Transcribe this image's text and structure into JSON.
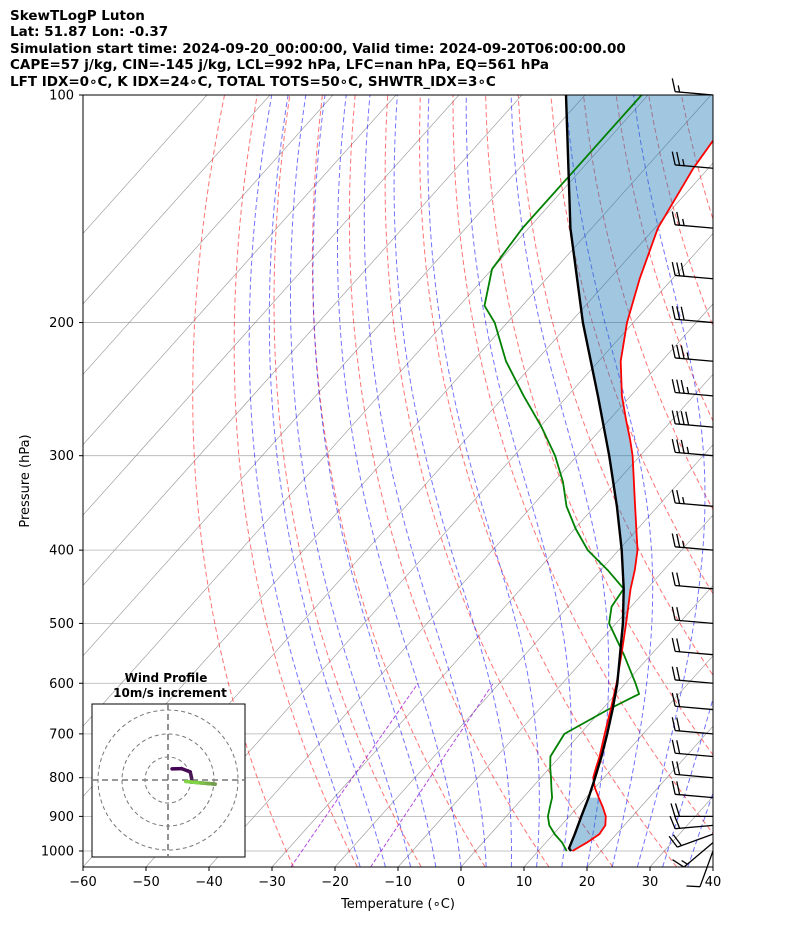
{
  "header": {
    "line1": "SkewTLogP Luton",
    "line2": "Lat: 51.87   Lon: -0.37",
    "line3": "Simulation start time: 2024-09-20_00:00:00, Valid time: 2024-09-20T06:00:00.00",
    "line4": "CAPE=57 j/kg, CIN=-145 j/kg, LCL=992 hPa, LFC=nan hPa, EQ=561 hPa",
    "line5": "LFT IDX=0∘C, K IDX=24∘C, TOTAL TOTS=50∘C, SHWTR_IDX=3∘C"
  },
  "chart_data": {
    "type": "skewt",
    "xlabel": "Temperature (∘C)",
    "ylabel": "Pressure (hPa)",
    "xlim": [
      -60,
      40
    ],
    "ylim": [
      1050,
      100
    ],
    "y_scale": "log",
    "grid": true,
    "x_ticks": [
      -60,
      -50,
      -40,
      -30,
      -20,
      -10,
      0,
      10,
      20,
      30,
      40
    ],
    "x_tick_labels": [
      "−60",
      "−50",
      "−40",
      "−30",
      "−20",
      "−10",
      "0",
      "10",
      "20",
      "30",
      "40"
    ],
    "y_ticks": [
      1000,
      900,
      800,
      700,
      600,
      500,
      400,
      300,
      200,
      100
    ],
    "y_tick_labels": [
      "1000",
      "900",
      "800",
      "700",
      "600",
      "500",
      "400",
      "300",
      "200",
      "100"
    ],
    "colors": {
      "temperature": "#ff0000",
      "dewpoint": "#008000",
      "parcel": "#000000",
      "cape_fill": "#1f77b4",
      "dry_adiabat": "#ff0000",
      "moist_adiabat": "#0000ff",
      "mixing_ratio": "#9400d3",
      "isotherm": "#808080"
    },
    "temperature": {
      "pressure": [
        1000,
        975,
        950,
        925,
        900,
        875,
        850,
        825,
        800,
        775,
        750,
        700,
        650,
        600,
        550,
        500,
        450,
        425,
        400,
        350,
        300,
        285,
        270,
        250,
        225,
        200,
        175,
        150,
        125,
        110,
        100
      ],
      "values": [
        15.4,
        16.5,
        17.3,
        17.0,
        15.8,
        14.0,
        12.0,
        10.0,
        8.3,
        7.3,
        6.3,
        3.9,
        1.4,
        -1.4,
        -4.7,
        -8.4,
        -12.6,
        -14.6,
        -17.0,
        -23.6,
        -31.2,
        -34.0,
        -37.1,
        -41.4,
        -46.5,
        -51.0,
        -55.2,
        -59.5,
        -62.4,
        -63.6,
        -64.4
      ]
    },
    "dewpoint": {
      "pressure": [
        1000,
        975,
        950,
        925,
        900,
        875,
        850,
        825,
        800,
        775,
        750,
        700,
        650,
        620,
        600,
        550,
        500,
        475,
        450,
        425,
        400,
        375,
        350,
        325,
        300,
        275,
        250,
        225,
        200,
        190,
        170,
        150,
        125,
        110,
        100
      ],
      "values": [
        14.5,
        12.6,
        10.2,
        8.1,
        6.6,
        5.6,
        4.6,
        3.1,
        1.6,
        0.0,
        -1.5,
        -2.5,
        1.0,
        3.7,
        1.6,
        -4.3,
        -11.1,
        -13.1,
        -13.7,
        -18.9,
        -24.9,
        -29.8,
        -34.5,
        -38.5,
        -43.5,
        -49.7,
        -57.0,
        -64.7,
        -72.0,
        -76.0,
        -80.0,
        -81.0,
        -81.0,
        -81.0,
        -81.0
      ]
    },
    "parcel": {
      "pressure": [
        1000,
        992,
        950,
        900,
        850,
        800,
        750,
        700,
        650,
        600,
        561,
        500,
        450,
        400,
        350,
        300,
        250,
        200,
        150,
        100
      ],
      "values": [
        15.2,
        14.5,
        13.4,
        11.9,
        10.4,
        8.6,
        6.6,
        4.3,
        1.7,
        -1.3,
        -4.1,
        -8.9,
        -13.7,
        -19.5,
        -26.5,
        -34.9,
        -45.2,
        -58.0,
        -73.4,
        -93.0
      ]
    },
    "wind_barbs": {
      "pressure": [
        1000,
        975,
        950,
        925,
        900,
        850,
        800,
        750,
        700,
        650,
        600,
        550,
        500,
        450,
        400,
        350,
        300,
        275,
        250,
        225,
        200,
        175,
        150,
        125,
        100
      ],
      "speed_kt": [
        10,
        15,
        20,
        20,
        20,
        20,
        20,
        20,
        20,
        20,
        20,
        20,
        20,
        20,
        25,
        25,
        35,
        40,
        35,
        35,
        30,
        30,
        25,
        25,
        15
      ],
      "direction_deg": [
        200,
        230,
        250,
        265,
        270,
        275,
        275,
        275,
        275,
        275,
        275,
        275,
        275,
        275,
        275,
        275,
        275,
        275,
        275,
        275,
        275,
        275,
        275,
        275,
        275
      ]
    },
    "hodograph": {
      "title_line1": "Wind Profile",
      "title_line2": "10m/s increment"
    }
  }
}
